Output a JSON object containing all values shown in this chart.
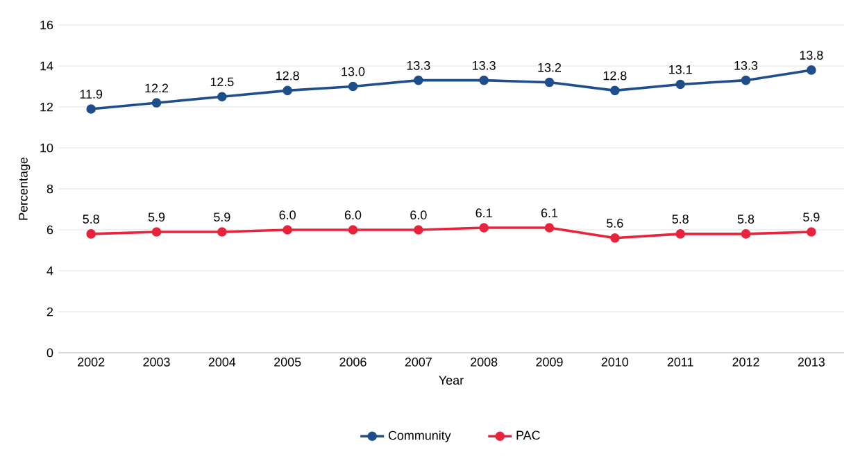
{
  "chart_data": {
    "type": "line",
    "xlabel": "Year",
    "ylabel": "Percentage",
    "categories": [
      "2002",
      "2003",
      "2004",
      "2005",
      "2006",
      "2007",
      "2008",
      "2009",
      "2010",
      "2011",
      "2012",
      "2013"
    ],
    "series": [
      {
        "name": "Community",
        "color": "#1f4e8c",
        "values": [
          11.9,
          12.2,
          12.5,
          12.8,
          13.0,
          13.3,
          13.3,
          13.2,
          12.8,
          13.1,
          13.3,
          13.8
        ],
        "value_labels": [
          "11.9",
          "12.2",
          "12.5",
          "12.8",
          "13.0",
          "13.3",
          "13.3",
          "13.2",
          "12.8",
          "13.1",
          "13.3",
          "13.8"
        ]
      },
      {
        "name": "PAC",
        "color": "#e8233c",
        "values": [
          5.8,
          5.9,
          5.9,
          6.0,
          6.0,
          6.0,
          6.1,
          6.1,
          5.6,
          5.8,
          5.8,
          5.9
        ],
        "value_labels": [
          "5.8",
          "5.9",
          "5.9",
          "6.0",
          "6.0",
          "6.0",
          "6.1",
          "6.1",
          "5.6",
          "5.8",
          "5.8",
          "5.9"
        ]
      }
    ],
    "ylim": [
      0,
      16
    ],
    "yticks": [
      0,
      2,
      4,
      6,
      8,
      10,
      12,
      14,
      16
    ],
    "grid": "y",
    "legend": "bottom",
    "marker": "circle",
    "line_style": "solid"
  }
}
